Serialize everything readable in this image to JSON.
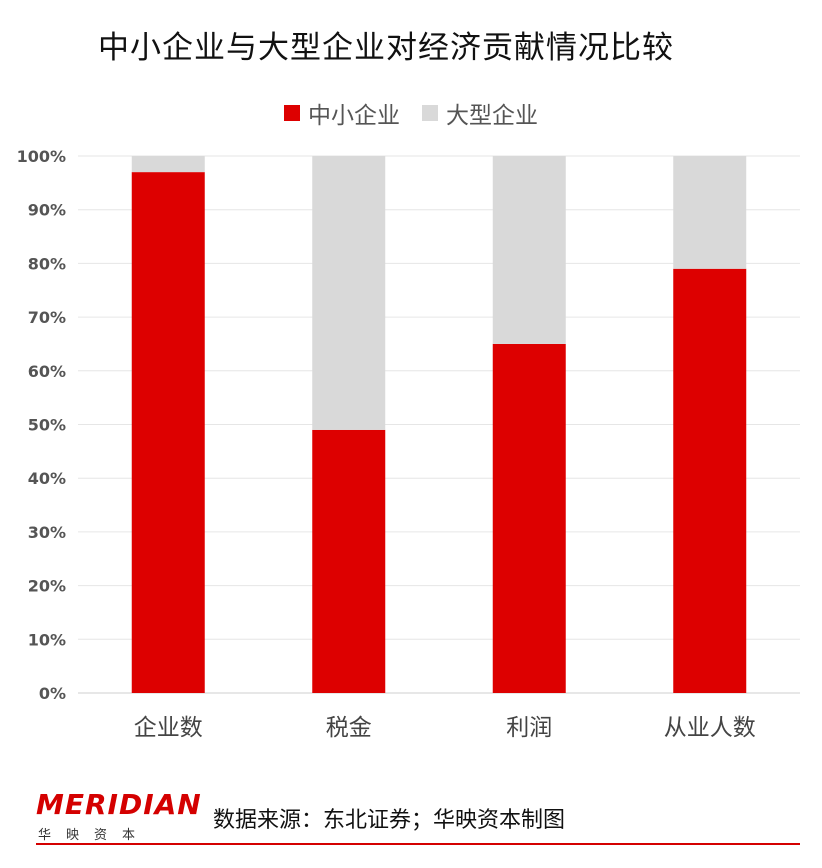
{
  "chart_data": {
    "type": "bar",
    "stacked": true,
    "title": "中小企业与大型企业对经济贡献情况比较",
    "categories": [
      "企业数",
      "税金",
      "利润",
      "从业人数"
    ],
    "series": [
      {
        "name": "中小企业",
        "color": "#dd0000",
        "values": [
          97,
          49,
          65,
          79
        ]
      },
      {
        "name": "大型企业",
        "color": "#d9d9d9",
        "values": [
          3,
          51,
          35,
          21
        ]
      }
    ],
    "yticks": [
      "0%",
      "10%",
      "20%",
      "30%",
      "40%",
      "50%",
      "60%",
      "70%",
      "80%",
      "90%",
      "100%"
    ],
    "ylim": [
      0,
      100
    ],
    "grid": true,
    "legend_position": "top"
  },
  "footer": {
    "logo": "MERIDIAN",
    "logo_sub": "华映资本",
    "source": "数据来源：东北证券；华映资本制图"
  }
}
